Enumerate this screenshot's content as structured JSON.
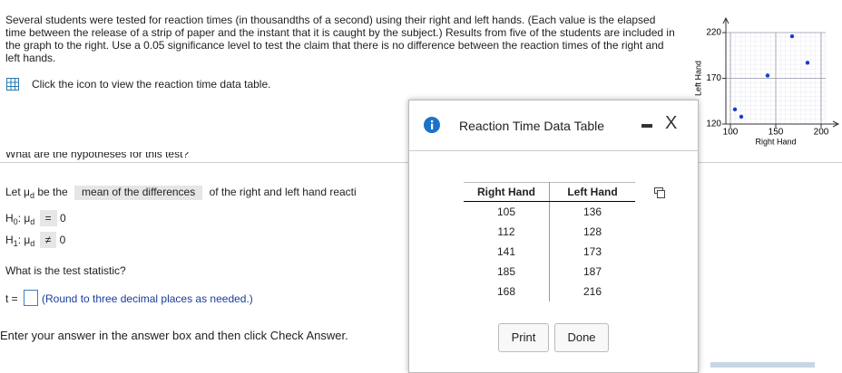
{
  "problem": {
    "text": "Several students were tested for reaction times (in thousandths of a second) using their right and left hands. (Each value is the elapsed time between the release of a strip of paper and the instant that it is caught by the subject.) Results from five of the students are included in the graph to the right. Use a 0.05 significance level to test the claim that there is no difference between the reaction times of the right and left hands.",
    "link": "Click the icon to view the reaction time data table."
  },
  "question1": "What are the hypotheses for this test?",
  "hypotheses": {
    "let": "Let",
    "mu": "μ",
    "d": "d",
    "be_the": "be the",
    "dropdown": "mean of the differences",
    "rest": "of the right and left hand reacti",
    "h0": {
      "h": "H",
      "sub": "0",
      "mu": ": μ",
      "d": "d",
      "op": "=",
      "value": "0"
    },
    "h1": {
      "h": "H",
      "sub": "1",
      "mu": ": μ",
      "d": "d",
      "op": "≠",
      "value": "0"
    }
  },
  "question2": "What is the test statistic?",
  "answer": {
    "t": "t =",
    "hint": "(Round to three decimal places as needed.)"
  },
  "footer": "Enter your answer in the answer box and then click Check Answer.",
  "modal": {
    "title": "Reaction Time Data Table",
    "close": "X",
    "table": {
      "headers": [
        "Right Hand",
        "Left Hand"
      ],
      "rows": [
        [
          "105",
          "136"
        ],
        [
          "112",
          "128"
        ],
        [
          "141",
          "173"
        ],
        [
          "185",
          "187"
        ],
        [
          "168",
          "216"
        ]
      ]
    },
    "buttons": [
      "Print",
      "Done"
    ]
  },
  "chart_data": {
    "type": "scatter",
    "xlabel": "Right Hand",
    "ylabel": "Left Hand",
    "x": [
      105,
      112,
      141,
      185,
      168
    ],
    "values": [
      136,
      128,
      173,
      187,
      216
    ],
    "color": "#1a3ccc",
    "xlim": [
      95,
      205
    ],
    "ylim": [
      120,
      220
    ],
    "xticks": [
      100,
      150,
      200
    ],
    "yticks": [
      120,
      170,
      220
    ],
    "grid": true
  }
}
